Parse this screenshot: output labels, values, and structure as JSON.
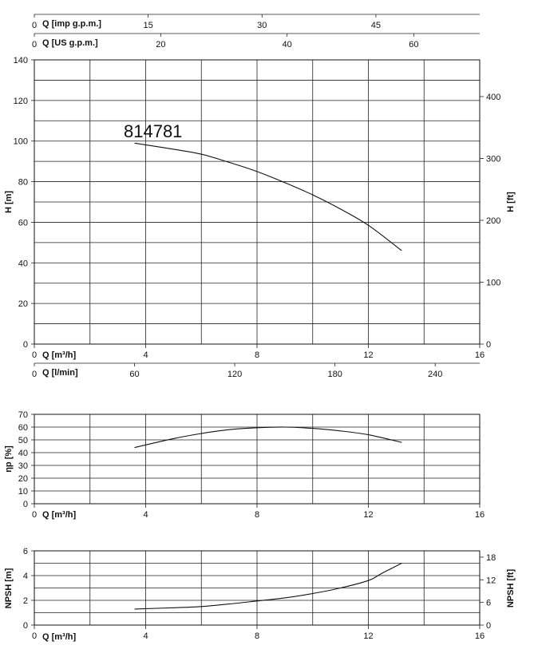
{
  "chart_data": [
    {
      "type": "line",
      "label": "814781",
      "xlabel": "Q [m³/h]",
      "ylabel": "H [m]",
      "ylabel_right": "H [ft]",
      "xlim": [
        0,
        16
      ],
      "ylim": [
        0,
        140
      ],
      "x_ticks": [
        "0",
        "4",
        "8",
        "12",
        "16"
      ],
      "y_ticks": [
        "0",
        "20",
        "40",
        "60",
        "80",
        "100",
        "120",
        "140"
      ],
      "right_ticks": [
        "0",
        "100",
        "200",
        "300",
        "400"
      ],
      "right_ticks_values": [
        0,
        30.48,
        60.96,
        91.44,
        121.92
      ],
      "top_axes": [
        {
          "label": "Q [imp g.p.m.]",
          "ticks": [
            "0",
            "15",
            "30",
            "45"
          ],
          "values": [
            0,
            4.09,
            8.18,
            12.27
          ]
        },
        {
          "label": "Q [US g.p.m.]",
          "ticks": [
            "0",
            "20",
            "40",
            "60"
          ],
          "values": [
            0,
            4.54,
            9.08,
            13.63
          ]
        }
      ],
      "bottom_axis2": {
        "label": "Q [l/min]",
        "ticks": [
          "0",
          "60",
          "120",
          "180",
          "240"
        ],
        "values": [
          0,
          3.6,
          7.2,
          10.8,
          14.4
        ]
      },
      "grid": true,
      "series": [
        {
          "x": [
            3.6,
            5,
            6,
            7,
            8,
            9,
            10,
            11,
            12,
            13.2
          ],
          "y": [
            99,
            96,
            93.5,
            89.5,
            85,
            79.5,
            73.5,
            66.5,
            58.5,
            46
          ]
        }
      ]
    },
    {
      "type": "line",
      "xlabel": "Q [m³/h]",
      "ylabel": "ηp [%]",
      "xlim": [
        0,
        16
      ],
      "ylim": [
        0,
        70
      ],
      "x_ticks": [
        "0",
        "4",
        "8",
        "12",
        "16"
      ],
      "y_ticks": [
        "0",
        "10",
        "20",
        "30",
        "40",
        "50",
        "60",
        "70"
      ],
      "grid": true,
      "series": [
        {
          "x": [
            3.6,
            5,
            6,
            7,
            8,
            9,
            10,
            11,
            12,
            13.2
          ],
          "y": [
            44,
            51,
            55,
            58,
            59.5,
            60,
            59,
            57,
            54,
            48
          ]
        }
      ]
    },
    {
      "type": "line",
      "xlabel": "Q [m³/h]",
      "ylabel": "NPSH [m]",
      "ylabel_right": "NPSH [ft]",
      "xlim": [
        0,
        16
      ],
      "ylim": [
        0,
        6
      ],
      "x_ticks": [
        "0",
        "4",
        "8",
        "12",
        "16"
      ],
      "y_ticks": [
        "0",
        "2",
        "4",
        "6"
      ],
      "right_ticks": [
        "0",
        "6",
        "12",
        "18"
      ],
      "right_ticks_values": [
        0,
        1.83,
        3.66,
        5.49
      ],
      "grid": true,
      "series": [
        {
          "x": [
            3.6,
            5,
            6,
            7,
            8,
            9,
            10,
            11,
            12,
            12.5,
            13.2
          ],
          "y": [
            1.3,
            1.4,
            1.5,
            1.7,
            1.95,
            2.2,
            2.55,
            3.0,
            3.6,
            4.2,
            5.0
          ]
        }
      ]
    }
  ]
}
